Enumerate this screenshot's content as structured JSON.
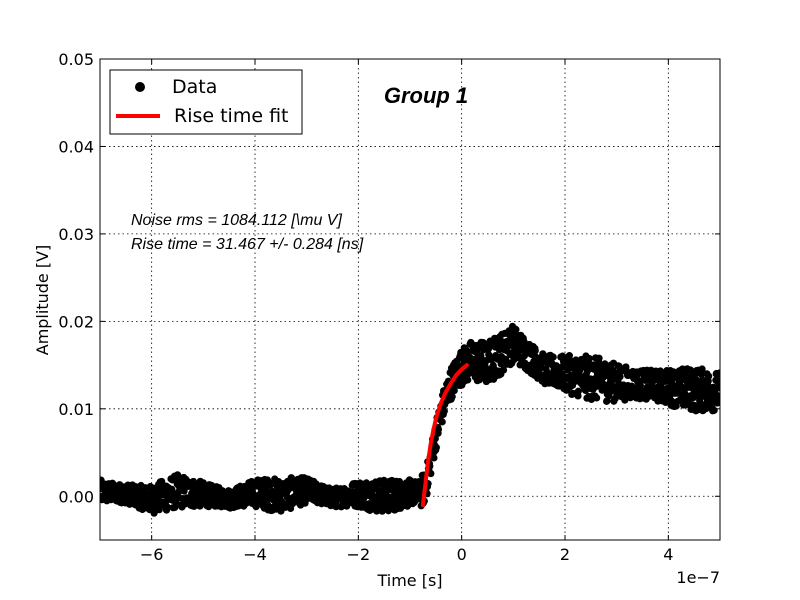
{
  "chart_data": {
    "type": "scatter",
    "title": "Group 1",
    "xlabel": "Time [s]",
    "ylabel": "Amplitude [V]",
    "x_offset_label": "1e−7",
    "xlim": [
      -7,
      5
    ],
    "ylim": [
      -0.005,
      0.05
    ],
    "grid": true,
    "legend_placement": "top-left",
    "x_ticks": [
      -6,
      -4,
      -2,
      0,
      2,
      4
    ],
    "x_tick_labels": [
      "−6",
      "−4",
      "−2",
      "0",
      "2",
      "4"
    ],
    "y_ticks": [
      0.0,
      0.01,
      0.02,
      0.03,
      0.04,
      0.05
    ],
    "y_tick_labels": [
      "0.00",
      "0.01",
      "0.02",
      "0.03",
      "0.04",
      "0.05"
    ],
    "annotations": [
      "Noise rms = 1084.112 [\\mu V]",
      "Rise time = 31.467 +/- 0.284 [ns]"
    ],
    "series": [
      {
        "name": "Data",
        "kind": "points",
        "color": "#000000",
        "x": [
          -7.0,
          -6.5,
          -6.0,
          -5.5,
          -5.0,
          -4.5,
          -4.0,
          -3.5,
          -3.0,
          -2.5,
          -2.0,
          -1.5,
          -1.0,
          -0.8,
          -0.7,
          -0.6,
          -0.5,
          -0.4,
          -0.3,
          -0.2,
          -0.1,
          0.0,
          0.2,
          0.5,
          0.8,
          1.0,
          1.3,
          1.6,
          2.0,
          2.5,
          3.0,
          3.5,
          4.0,
          4.5,
          5.0
        ],
        "y": [
          0.0005,
          0.0003,
          -0.0004,
          0.0006,
          0.0002,
          -0.0003,
          0.0004,
          0.0001,
          0.0007,
          -0.0002,
          0.0003,
          0.0,
          0.0004,
          0.0005,
          0.001,
          0.004,
          0.007,
          0.0095,
          0.0115,
          0.013,
          0.014,
          0.0148,
          0.0155,
          0.0152,
          0.0165,
          0.0175,
          0.016,
          0.0145,
          0.014,
          0.0135,
          0.013,
          0.0128,
          0.0125,
          0.0122,
          0.012
        ]
      },
      {
        "name": "Rise time fit",
        "kind": "line",
        "color": "#ff0000",
        "x": [
          -0.75,
          -0.7,
          -0.65,
          -0.6,
          -0.55,
          -0.5,
          -0.45,
          -0.4,
          -0.3,
          -0.2,
          -0.1,
          0.0,
          0.1
        ],
        "y": [
          -0.001,
          0.0015,
          0.004,
          0.006,
          0.0075,
          0.0088,
          0.0098,
          0.0107,
          0.012,
          0.013,
          0.0139,
          0.0145,
          0.015
        ]
      }
    ]
  }
}
